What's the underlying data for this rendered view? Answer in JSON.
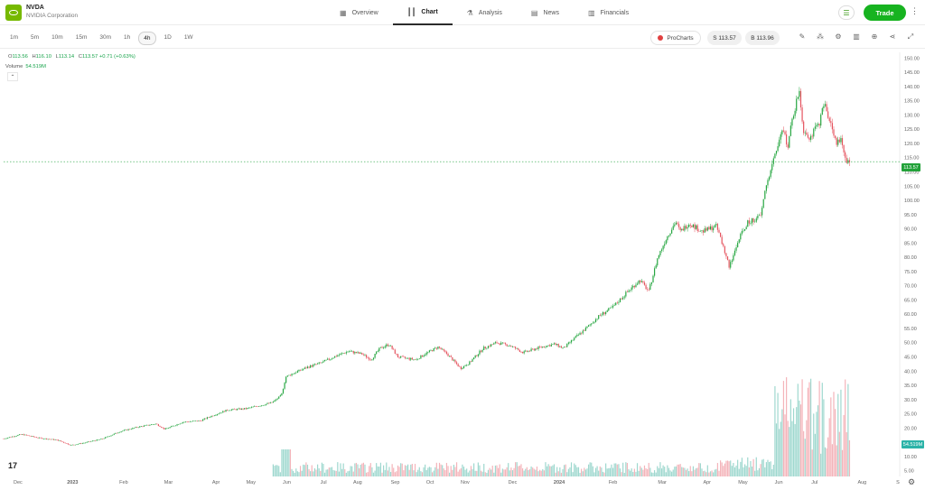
{
  "header": {
    "ticker": "NVDA",
    "company": "NVIDIA Corporation",
    "nav": [
      {
        "label": "Overview",
        "icon": "grid-icon",
        "glyph": "▦",
        "active": false
      },
      {
        "label": "Chart",
        "icon": "candles-icon",
        "glyph": "┃┃",
        "active": true
      },
      {
        "label": "Analysis",
        "icon": "flask-icon",
        "glyph": "⚗",
        "active": false
      },
      {
        "label": "News",
        "icon": "newspaper-icon",
        "glyph": "▤",
        "active": false
      },
      {
        "label": "Financials",
        "icon": "bar-chart-icon",
        "glyph": "▥",
        "active": false
      }
    ],
    "trade_label": "Trade"
  },
  "toolbar": {
    "timeframes": [
      "1m",
      "5m",
      "10m",
      "15m",
      "30m",
      "1h",
      "4h",
      "1D",
      "1W"
    ],
    "active_timeframe": "4h",
    "procharts_label": "ProCharts",
    "sell_label": "S 113.57",
    "buy_label": "B 113.96",
    "tools": [
      "pencil-icon",
      "indicators-icon",
      "settings-icon",
      "chart-type-icon",
      "add-icon",
      "share-icon",
      "expand-icon"
    ]
  },
  "ohlc": {
    "open_label": "O",
    "open": "113.56",
    "high_label": "H",
    "high": "116.10",
    "low_label": "L",
    "low": "113.14",
    "close_label": "C",
    "close": "113.57",
    "change": "+0.71 (+0.63%)",
    "volume_label": "Volume",
    "volume": "54.519M"
  },
  "tv_logo": "17",
  "price_tag": "113.57",
  "volume_tag": "54.519M",
  "colors": {
    "up": "#26a641",
    "down": "#e5545f",
    "accent": "#17b320",
    "vol_up": "#9fd8cf",
    "vol_down": "#f4b4ba"
  },
  "chart_data": {
    "type": "candlestick",
    "x_ticks": [
      "Dec",
      "2023",
      "Feb",
      "Mar",
      "Apr",
      "May",
      "Jun",
      "Jul",
      "Aug",
      "Sep",
      "Oct",
      "Nov",
      "Dec",
      "2024",
      "Feb",
      "Mar",
      "Apr",
      "May",
      "Jun",
      "Jul",
      "Aug",
      "S"
    ],
    "y_ticks": [
      150,
      145,
      140,
      135,
      130,
      125,
      120,
      115,
      110,
      105,
      100,
      95,
      90,
      85,
      80,
      75,
      70,
      65,
      60,
      55,
      50,
      45,
      40,
      35,
      30,
      25,
      20,
      15,
      10,
      5
    ],
    "ylim": [
      3,
      152
    ],
    "last_price": 113.57,
    "price_path": [
      [
        0,
        16.3
      ],
      [
        0.02,
        17.8
      ],
      [
        0.04,
        16.5
      ],
      [
        0.06,
        15.8
      ],
      [
        0.075,
        14.0
      ],
      [
        0.09,
        14.8
      ],
      [
        0.11,
        16.2
      ],
      [
        0.13,
        18.8
      ],
      [
        0.15,
        20.4
      ],
      [
        0.17,
        21.5
      ],
      [
        0.18,
        19.6
      ],
      [
        0.2,
        22.1
      ],
      [
        0.22,
        22.6
      ],
      [
        0.23,
        24.0
      ],
      [
        0.25,
        26.4
      ],
      [
        0.27,
        26.8
      ],
      [
        0.29,
        28.2
      ],
      [
        0.3,
        29.0
      ],
      [
        0.31,
        31.5
      ],
      [
        0.315,
        38.0
      ],
      [
        0.325,
        39.5
      ],
      [
        0.34,
        41.5
      ],
      [
        0.355,
        43.0
      ],
      [
        0.37,
        45.2
      ],
      [
        0.385,
        47.0
      ],
      [
        0.4,
        46.0
      ],
      [
        0.41,
        44.0
      ],
      [
        0.42,
        48.0
      ],
      [
        0.43,
        49.5
      ],
      [
        0.44,
        45.0
      ],
      [
        0.46,
        44.0
      ],
      [
        0.47,
        46.0
      ],
      [
        0.485,
        48.5
      ],
      [
        0.495,
        46.0
      ],
      [
        0.51,
        41.0
      ],
      [
        0.52,
        43.0
      ],
      [
        0.535,
        48.0
      ],
      [
        0.55,
        50.0
      ],
      [
        0.565,
        49.0
      ],
      [
        0.58,
        46.5
      ],
      [
        0.6,
        48.5
      ],
      [
        0.615,
        49.5
      ],
      [
        0.625,
        48.0
      ],
      [
        0.635,
        51.0
      ],
      [
        0.65,
        55.0
      ],
      [
        0.665,
        59.5
      ],
      [
        0.68,
        62.5
      ],
      [
        0.695,
        67.5
      ],
      [
        0.71,
        72.0
      ],
      [
        0.72,
        68.0
      ],
      [
        0.73,
        80.0
      ],
      [
        0.74,
        87.0
      ],
      [
        0.75,
        92.5
      ],
      [
        0.755,
        89.0
      ],
      [
        0.765,
        92.0
      ],
      [
        0.78,
        89.0
      ],
      [
        0.795,
        91.0
      ],
      [
        0.8,
        87.0
      ],
      [
        0.81,
        76.5
      ],
      [
        0.82,
        86.0
      ],
      [
        0.83,
        92.0
      ],
      [
        0.845,
        94.5
      ],
      [
        0.85,
        104.0
      ],
      [
        0.86,
        115.0
      ],
      [
        0.87,
        125.0
      ],
      [
        0.875,
        119.0
      ],
      [
        0.88,
        128.0
      ],
      [
        0.888,
        139.0
      ],
      [
        0.892,
        125.0
      ],
      [
        0.9,
        122.0
      ],
      [
        0.91,
        127.0
      ],
      [
        0.916,
        134.0
      ],
      [
        0.922,
        128.0
      ],
      [
        0.93,
        120.0
      ],
      [
        0.935,
        121.0
      ],
      [
        0.94,
        114.0
      ],
      [
        0.945,
        113.57
      ]
    ]
  }
}
